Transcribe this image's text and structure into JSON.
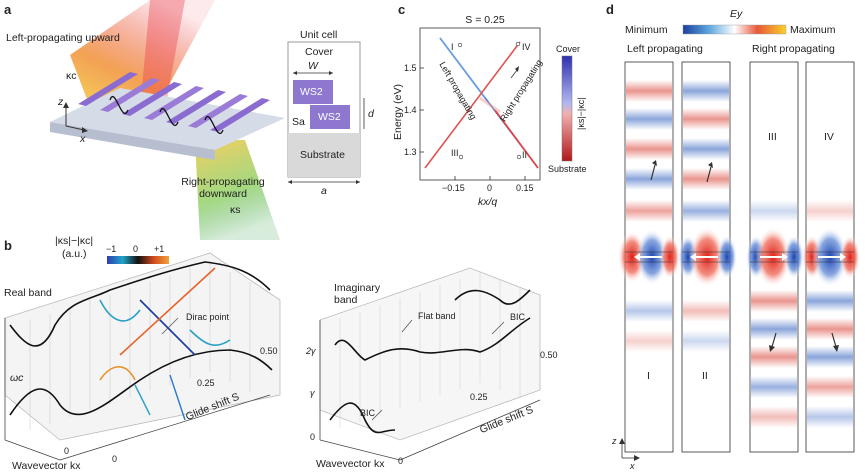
{
  "panel_a": {
    "letter": "a",
    "left_label": "Left-propagating upward",
    "kc": "κc",
    "right_label": "Right-propagating downward",
    "ks": "κs",
    "axis_z": "z",
    "axis_x": "x",
    "unit_cell_title": "Unit cell",
    "cover": "Cover",
    "W": "W",
    "ws2_top": "WS2",
    "ws2_bottom": "WS2",
    "sa": "Sa",
    "d": "d",
    "substrate": "Substrate",
    "a": "a"
  },
  "panel_b": {
    "letter": "b",
    "colorbar_title": "|κs|−|κc|",
    "colorbar_unit": "(a.u.)",
    "colorbar_ticks": [
      "−1",
      "0",
      "+1"
    ],
    "real_band": "Real band",
    "dirac_point": "Dirac point",
    "omega_c": "ωc",
    "glide_ticks": [
      "0.25",
      "0.50"
    ],
    "glide_label": "Glide shift S",
    "wavevector_label": "Wavevector kx",
    "wave_ticks": [
      "0",
      "0"
    ],
    "imag_band": "Imaginary band",
    "flat_band": "Flat band",
    "bic_top": "BIC",
    "bic_bottom": "BIC",
    "gamma_ticks": [
      "2γ",
      "γ",
      "0"
    ],
    "glide_ticks2": [
      "0.25",
      "0.50"
    ],
    "glide_label2": "Glide shift S",
    "wavevector_label2": "Wavevector kx",
    "wave_tick2": "0"
  },
  "panel_c": {
    "letter": "c",
    "title": "S = 0.25",
    "ylabel": "Energy (eV)",
    "xlabel": "kx/q",
    "yticks": [
      "1.5",
      "1.4",
      "1.3"
    ],
    "xticks": [
      "−0.15",
      "0",
      "0.15"
    ],
    "left_prop": "Left propagating",
    "right_prop": "Right propagating",
    "points": [
      "I",
      "II",
      "III",
      "IV"
    ],
    "cb_top": "Cover",
    "cb_bottom": "Substrate",
    "cb_label": "|κs|−|κc|"
  },
  "panel_d": {
    "letter": "d",
    "colorbar_title": "Ey",
    "min": "Minimum",
    "max": "Maximum",
    "left": "Left propagating",
    "right": "Right propagating",
    "labels": [
      "I",
      "II",
      "III",
      "IV"
    ],
    "axis_z": "z",
    "axis_x": "x"
  }
}
